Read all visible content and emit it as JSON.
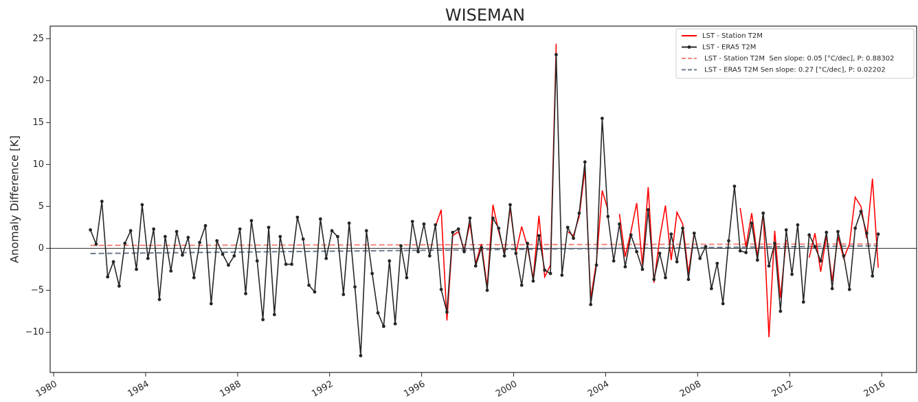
{
  "chart_data": {
    "type": "line",
    "title": "WISEMAN",
    "y_label": "Anomaly Difference [K]",
    "xlim": [
      1979.85,
      2017.52
    ],
    "ylim": [
      -14.8,
      26.5
    ],
    "xticks": [
      1980,
      1984,
      1988,
      1992,
      1996,
      2000,
      2004,
      2008,
      2012,
      2016
    ],
    "yticks": [
      {
        "value": -10,
        "label": "−10"
      },
      {
        "value": -5,
        "label": "−5"
      },
      0,
      5,
      10,
      15,
      20,
      25
    ],
    "axhline": 0,
    "legend": "upper right",
    "series": [
      {
        "name": "LST - Station T2M",
        "color": "#ff0000",
        "dashed": false,
        "markers": false,
        "x": [
          1996.6,
          1996.85,
          1997.1,
          1997.35,
          1997.6,
          1997.85,
          1998.1,
          1998.35,
          1998.6,
          1998.85,
          1999.1,
          1999.35,
          1999.6,
          1999.85,
          2000.1,
          2000.35,
          2000.6,
          2000.85,
          2001.1,
          2001.35,
          2001.6,
          2001.85,
          2002.1,
          2002.35,
          2002.6,
          2002.85,
          2003.1,
          2003.35,
          2003.6,
          2003.85,
          2004.1,
          2004.35,
          2004.6,
          2004.85,
          2005.1,
          2005.35,
          2005.6,
          2005.85,
          2006.1,
          2006.35,
          2006.6,
          2006.85,
          2007.1,
          2007.35,
          2007.6,
          2007.85,
          2008.1,
          2008.35,
          2008.6,
          2008.85,
          2009.1,
          2009.35,
          2009.6,
          2009.85,
          2010.1,
          2010.35,
          2010.6,
          2010.85,
          2011.1,
          2011.35,
          2011.6,
          2011.85,
          2012.1,
          2012.35,
          2012.6,
          2012.85,
          2013.1,
          2013.35,
          2013.6,
          2013.85,
          2014.1,
          2014.35,
          2014.6,
          2014.85,
          2015.1,
          2015.35,
          2015.6,
          2015.85
        ],
        "values": [
          2.6,
          4.6,
          -8.6,
          1.5,
          2.0,
          -0.2,
          3.0,
          -1.8,
          0.5,
          -4.6,
          5.2,
          2.0,
          -0.6,
          4.8,
          -0.5,
          2.6,
          0.2,
          -3.6,
          3.9,
          -3.4,
          -2.0,
          24.4,
          null,
          2.0,
          1.5,
          3.8,
          9.5,
          -6.0,
          -1.6,
          6.9,
          4.6,
          null,
          4.1,
          -1.0,
          2.0,
          5.4,
          -2.0,
          7.3,
          -4.1,
          1.2,
          5.1,
          -1.4,
          4.3,
          2.9,
          -3.0,
          1.9,
          null,
          0.4,
          null,
          4.6,
          null,
          -0.1,
          null,
          4.8,
          0.2,
          4.2,
          -1.0,
          4.2,
          -10.6,
          2.1,
          -5.9,
          1.0,
          null,
          2.6,
          null,
          -1.1,
          1.8,
          -2.8,
          1.5,
          -3.9,
          1.4,
          -1.2,
          0.5,
          6.1,
          5.0,
          1.2,
          8.3,
          -2.3
        ]
      },
      {
        "name": "LST - ERA5 T2M",
        "color": "#262626",
        "dashed": false,
        "markers": true,
        "x": [
          1981.6,
          1981.85,
          1982.1,
          1982.35,
          1982.6,
          1982.85,
          1983.1,
          1983.35,
          1983.6,
          1983.85,
          1984.1,
          1984.35,
          1984.6,
          1984.85,
          1985.1,
          1985.35,
          1985.6,
          1985.85,
          1986.1,
          1986.35,
          1986.6,
          1986.85,
          1987.1,
          1987.35,
          1987.6,
          1987.85,
          1988.1,
          1988.35,
          1988.6,
          1988.85,
          1989.1,
          1989.35,
          1989.6,
          1989.85,
          1990.1,
          1990.35,
          1990.6,
          1990.85,
          1991.1,
          1991.35,
          1991.6,
          1991.85,
          1992.1,
          1992.35,
          1992.6,
          1992.85,
          1993.1,
          1993.35,
          1993.6,
          1993.85,
          1994.1,
          1994.35,
          1994.6,
          1994.85,
          1995.1,
          1995.35,
          1995.6,
          1995.85,
          1996.1,
          1996.35,
          1996.6,
          1996.85,
          1997.1,
          1997.35,
          1997.6,
          1997.85,
          1998.1,
          1998.35,
          1998.6,
          1998.85,
          1999.1,
          1999.35,
          1999.6,
          1999.85,
          2000.1,
          2000.35,
          2000.6,
          2000.85,
          2001.1,
          2001.35,
          2001.6,
          2001.85,
          2002.1,
          2002.35,
          2002.6,
          2002.85,
          2003.1,
          2003.35,
          2003.6,
          2003.85,
          2004.1,
          2004.35,
          2004.6,
          2004.85,
          2005.1,
          2005.35,
          2005.6,
          2005.85,
          2006.1,
          2006.35,
          2006.6,
          2006.85,
          2007.1,
          2007.35,
          2007.6,
          2007.85,
          2008.1,
          2008.35,
          2008.6,
          2008.85,
          2009.1,
          2009.35,
          2009.6,
          2009.85,
          2010.1,
          2010.35,
          2010.6,
          2010.85,
          2011.1,
          2011.35,
          2011.6,
          2011.85,
          2012.1,
          2012.35,
          2012.6,
          2012.85,
          2013.1,
          2013.35,
          2013.6,
          2013.85,
          2014.1,
          2014.35,
          2014.6,
          2014.85,
          2015.1,
          2015.35,
          2015.6,
          2015.85
        ],
        "values": [
          2.2,
          0.5,
          5.6,
          -3.4,
          -1.6,
          -4.5,
          0.6,
          2.1,
          -2.5,
          5.2,
          -1.2,
          2.3,
          -6.1,
          1.4,
          -2.7,
          2.0,
          -0.8,
          1.3,
          -3.5,
          0.7,
          2.7,
          -6.6,
          0.9,
          -0.7,
          -2.0,
          -0.9,
          2.3,
          -5.4,
          3.3,
          -1.5,
          -8.5,
          2.5,
          -7.9,
          1.4,
          -1.9,
          -1.9,
          3.7,
          1.1,
          -4.4,
          -5.2,
          3.5,
          -1.2,
          2.1,
          1.4,
          -5.5,
          3.0,
          -4.6,
          -12.8,
          2.1,
          -3.0,
          -7.7,
          -9.3,
          -1.5,
          -9.0,
          0.3,
          -3.5,
          3.2,
          -0.4,
          2.9,
          -0.9,
          2.8,
          -4.9,
          -7.6,
          1.9,
          2.3,
          -0.4,
          3.6,
          -2.1,
          0.1,
          -5.0,
          3.6,
          2.4,
          -0.9,
          5.2,
          -0.6,
          -4.4,
          0.6,
          -3.9,
          1.5,
          -2.6,
          -3.0,
          23.1,
          -3.2,
          2.5,
          1.2,
          4.2,
          10.3,
          -6.7,
          -2.0,
          15.5,
          3.8,
          -1.5,
          2.9,
          -2.2,
          1.6,
          -0.4,
          -2.5,
          4.6,
          -3.7,
          -0.6,
          -3.5,
          1.7,
          -1.6,
          2.4,
          -3.7,
          1.8,
          -1.2,
          0.2,
          -4.8,
          -1.8,
          -6.6,
          0.9,
          7.4,
          -0.3,
          -0.5,
          3.0,
          -1.4,
          4.2,
          -2.1,
          0.6,
          -7.5,
          2.2,
          -3.1,
          2.8,
          -6.4,
          1.6,
          0.2,
          -1.5,
          1.9,
          -4.8,
          2.0,
          -0.9,
          -4.9,
          2.4,
          4.4,
          1.8,
          -3.3,
          1.7
        ]
      },
      {
        "name": " LST - Station T2M  Sen slope: 0.05 [°C/dec], P: 0.88302",
        "color": "#f4877f",
        "dashed": true,
        "markers": false,
        "x": [
          1981.6,
          2015.85
        ],
        "values": [
          0.35,
          0.52
        ]
      },
      {
        "name": " LST - ERA5 T2M Sen slope: 0.27 [°C/dec], P: 0.02202",
        "color": "#6b7a8f",
        "dashed": true,
        "markers": false,
        "x": [
          1981.6,
          2015.85
        ],
        "values": [
          -0.62,
          0.3
        ]
      }
    ]
  }
}
